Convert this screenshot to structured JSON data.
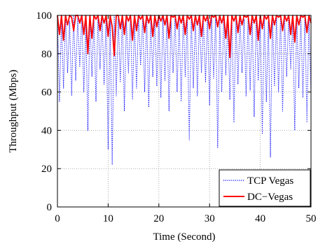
{
  "chart_data": {
    "type": "line",
    "title": "",
    "xlabel": "Time (Second)",
    "ylabel": "Throughput (Mbps)",
    "xlim": [
      0,
      50
    ],
    "ylim": [
      0,
      100
    ],
    "xticks": [
      0,
      10,
      20,
      30,
      40,
      50
    ],
    "yticks": [
      0,
      20,
      40,
      60,
      80,
      100
    ],
    "grid": true,
    "legend_position": "bottom-right",
    "series": [
      {
        "name": "TCP Vegas",
        "color": "#0000ff",
        "style": "dotted",
        "x": [
          0.0,
          0.4,
          0.8,
          1.2,
          1.6,
          2.0,
          2.4,
          2.8,
          3.2,
          3.6,
          4.0,
          4.4,
          4.8,
          5.2,
          5.6,
          6.0,
          6.4,
          6.8,
          7.2,
          7.6,
          8.0,
          8.4,
          8.8,
          9.2,
          9.6,
          10.0,
          10.4,
          10.8,
          11.2,
          11.6,
          12.0,
          12.4,
          12.8,
          13.2,
          13.6,
          14.0,
          14.4,
          14.8,
          15.2,
          15.6,
          16.0,
          16.4,
          16.8,
          17.2,
          17.6,
          18.0,
          18.4,
          18.8,
          19.2,
          19.6,
          20.0,
          20.4,
          20.8,
          21.2,
          21.6,
          22.0,
          22.4,
          22.8,
          23.2,
          23.6,
          24.0,
          24.4,
          24.8,
          25.2,
          25.6,
          26.0,
          26.4,
          26.8,
          27.2,
          27.6,
          28.0,
          28.4,
          28.8,
          29.2,
          29.6,
          30.0,
          30.4,
          30.8,
          31.2,
          31.6,
          32.0,
          32.4,
          32.8,
          33.2,
          33.6,
          34.0,
          34.4,
          34.8,
          35.2,
          35.6,
          36.0,
          36.4,
          36.8,
          37.2,
          37.6,
          38.0,
          38.4,
          38.8,
          39.2,
          39.6,
          40.0,
          40.4,
          40.8,
          41.2,
          41.6,
          42.0,
          42.4,
          42.8,
          43.2,
          43.6,
          44.0,
          44.4,
          44.8,
          45.2,
          45.6,
          46.0,
          46.4,
          46.8,
          47.2,
          47.6,
          48.0,
          48.4,
          48.8,
          49.2,
          49.6,
          50.0
        ],
        "y": [
          100,
          55,
          98,
          62,
          100,
          70,
          97,
          58,
          100,
          66,
          99,
          73,
          100,
          60,
          96,
          40,
          100,
          68,
          98,
          55,
          100,
          72,
          99,
          64,
          100,
          30,
          97,
          22,
          100,
          58,
          99,
          65,
          100,
          50,
          98,
          70,
          100,
          56,
          97,
          62,
          100,
          74,
          99,
          60,
          100,
          52,
          98,
          68,
          100,
          63,
          100,
          57,
          99,
          66,
          100,
          50,
          97,
          70,
          100,
          60,
          99,
          55,
          100,
          68,
          98,
          35,
          100,
          62,
          99,
          58,
          100,
          70,
          97,
          65,
          100,
          53,
          99,
          67,
          100,
          31,
          98,
          60,
          100,
          69,
          97,
          56,
          100,
          44,
          99,
          64,
          100,
          70,
          98,
          58,
          100,
          61,
          99,
          47,
          100,
          66,
          98,
          38,
          100,
          55,
          97,
          26,
          100,
          63,
          99,
          60,
          100,
          50,
          98,
          68,
          100,
          72,
          97,
          40,
          100,
          62,
          99,
          57,
          100,
          44,
          98,
          60
        ]
      },
      {
        "name": "DC−Vegas",
        "color": "#ff0000",
        "style": "solid",
        "x": [
          0.0,
          0.4,
          0.8,
          1.2,
          1.6,
          2.0,
          2.4,
          2.8,
          3.2,
          3.6,
          4.0,
          4.4,
          4.8,
          5.2,
          5.6,
          6.0,
          6.4,
          6.8,
          7.2,
          7.6,
          8.0,
          8.4,
          8.8,
          9.2,
          9.6,
          10.0,
          10.4,
          10.8,
          11.2,
          11.6,
          12.0,
          12.4,
          12.8,
          13.2,
          13.6,
          14.0,
          14.4,
          14.8,
          15.2,
          15.6,
          16.0,
          16.4,
          16.8,
          17.2,
          17.6,
          18.0,
          18.4,
          18.8,
          19.2,
          19.6,
          20.0,
          20.4,
          20.8,
          21.2,
          21.6,
          22.0,
          22.4,
          22.8,
          23.2,
          23.6,
          24.0,
          24.4,
          24.8,
          25.2,
          25.6,
          26.0,
          26.4,
          26.8,
          27.2,
          27.6,
          28.0,
          28.4,
          28.8,
          29.2,
          29.6,
          30.0,
          30.4,
          30.8,
          31.2,
          31.6,
          32.0,
          32.4,
          32.8,
          33.2,
          33.6,
          34.0,
          34.4,
          34.8,
          35.2,
          35.6,
          36.0,
          36.4,
          36.8,
          37.2,
          37.6,
          38.0,
          38.4,
          38.8,
          39.2,
          39.6,
          40.0,
          40.4,
          40.8,
          41.2,
          41.6,
          42.0,
          42.4,
          42.8,
          43.2,
          43.6,
          44.0,
          44.4,
          44.8,
          45.2,
          45.6,
          46.0,
          46.4,
          46.8,
          47.2,
          47.6,
          48.0,
          48.4,
          48.8,
          49.2,
          49.6,
          50.0
        ],
        "y": [
          100,
          90,
          100,
          87,
          100,
          95,
          100,
          99,
          92,
          100,
          100,
          96,
          100,
          90,
          100,
          80,
          100,
          88,
          100,
          98,
          100,
          92,
          100,
          96,
          100,
          89,
          100,
          94,
          79,
          100,
          100,
          93,
          100,
          90,
          100,
          97,
          100,
          87,
          100,
          92,
          100,
          98,
          100,
          91,
          100,
          96,
          100,
          89,
          100,
          94,
          100,
          97,
          100,
          95,
          100,
          88,
          100,
          99,
          100,
          93,
          100,
          96,
          100,
          90,
          100,
          98,
          100,
          92,
          100,
          95,
          100,
          89,
          100,
          97,
          100,
          93,
          100,
          99,
          100,
          94,
          100,
          96,
          100,
          88,
          100,
          78,
          100,
          97,
          100,
          91,
          100,
          95,
          100,
          99,
          100,
          90,
          100,
          96,
          100,
          87,
          100,
          93,
          100,
          98,
          100,
          88,
          100,
          95,
          100,
          99,
          100,
          92,
          100,
          97,
          100,
          90,
          100,
          86,
          100,
          95,
          100,
          99,
          100,
          91,
          100,
          96
        ]
      }
    ]
  }
}
